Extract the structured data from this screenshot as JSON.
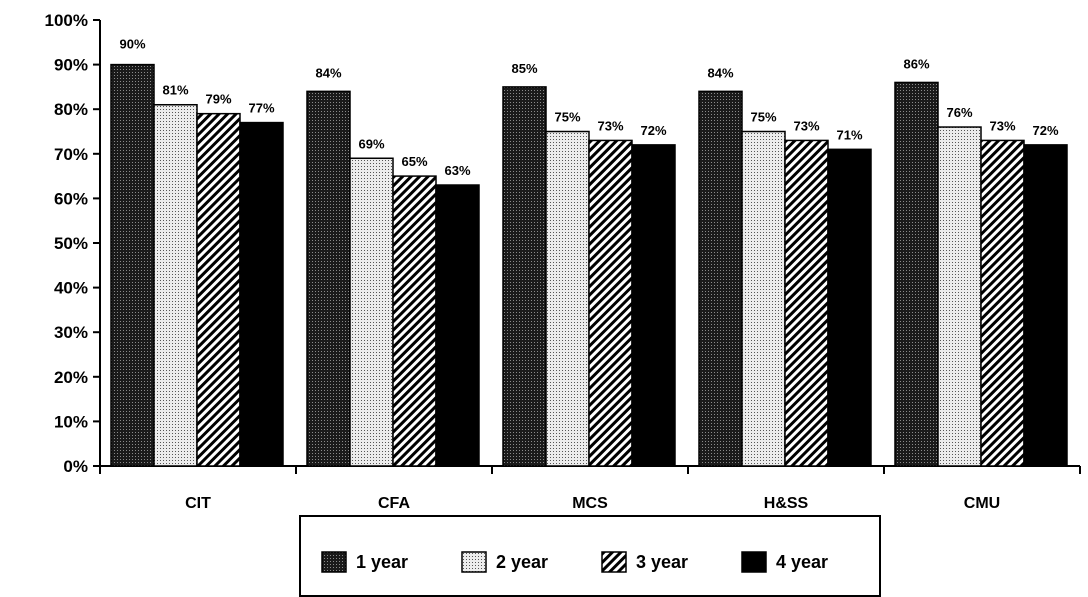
{
  "chart_data": {
    "type": "bar",
    "categories": [
      "CIT",
      "CFA",
      "MCS",
      "H&SS",
      "CMU"
    ],
    "series": [
      {
        "name": "1 year",
        "values": [
          90,
          84,
          85,
          84,
          86
        ],
        "labels": [
          "90%",
          "84%",
          "85%",
          "84%",
          "86%"
        ],
        "pattern": "dark-dots"
      },
      {
        "name": "2 year",
        "values": [
          81,
          69,
          75,
          75,
          76
        ],
        "labels": [
          "81%",
          "69%",
          "75%",
          "75%",
          "76%"
        ],
        "pattern": "light-dots"
      },
      {
        "name": "3 year",
        "values": [
          79,
          65,
          73,
          73,
          73
        ],
        "labels": [
          "79%",
          "65%",
          "73%",
          "73%",
          "73%"
        ],
        "pattern": "diagonal-stripes"
      },
      {
        "name": "4 year",
        "values": [
          77,
          63,
          72,
          71,
          72
        ],
        "labels": [
          "77%",
          "63%",
          "72%",
          "71%",
          "72%"
        ],
        "pattern": "solid-black"
      }
    ],
    "yticks": [
      "0%",
      "10%",
      "20%",
      "30%",
      "40%",
      "50%",
      "60%",
      "70%",
      "80%",
      "90%",
      "100%"
    ],
    "ylim": [
      0,
      100
    ],
    "xlabel": "",
    "ylabel": "",
    "title": "",
    "grid": false,
    "legend_position": "bottom-center",
    "colors": {
      "bar_fill": "#000000",
      "background": "#ffffff",
      "axis": "#000000"
    }
  }
}
